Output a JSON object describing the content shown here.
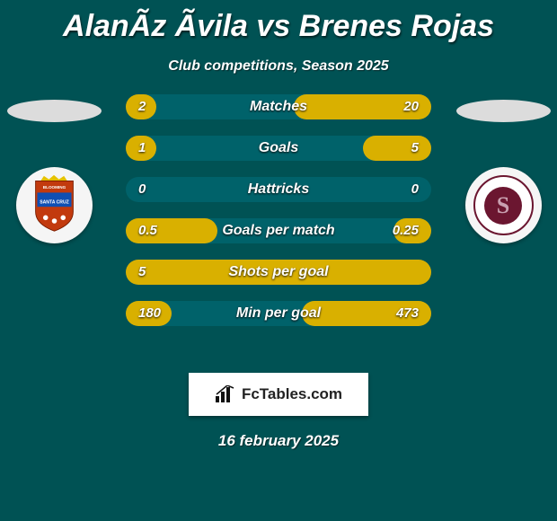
{
  "background_color": "#005254",
  "title": "AlanÃz Ãvila vs Brenes Rojas",
  "subtitle": "Club competitions, Season 2025",
  "date": "16 february 2025",
  "brand": {
    "label": "FcTables.com"
  },
  "bar_fill_color": "#D9B000",
  "bar_bg_color": "#00626A",
  "font_color": "#ffffff",
  "team_left": {
    "name": "Blooming",
    "crest_colors": {
      "shield": "#c23a0e",
      "banner": "#0f4fb3",
      "crown": "#e6c200"
    }
  },
  "team_right": {
    "name": "Saprissa",
    "crest_colors": {
      "ring": "#6b1630",
      "inner_bg": "#6b1630",
      "letter_color": "#c9a0b0",
      "letter": "S"
    }
  },
  "stats": [
    {
      "label": "Matches",
      "left_text": "2",
      "right_text": "20",
      "left_pct": 20,
      "right_pct": 90
    },
    {
      "label": "Goals",
      "left_text": "1",
      "right_text": "5",
      "left_pct": 20,
      "right_pct": 45
    },
    {
      "label": "Hattricks",
      "left_text": "0",
      "right_text": "0",
      "left_pct": 0,
      "right_pct": 0
    },
    {
      "label": "Goals per match",
      "left_text": "0.5",
      "right_text": "0.25",
      "left_pct": 60,
      "right_pct": 25
    },
    {
      "label": "Shots per goal",
      "left_text": "5",
      "right_text": "",
      "left_pct": 100,
      "right_pct": 0
    },
    {
      "label": "Min per goal",
      "left_text": "180",
      "right_text": "473",
      "left_pct": 30,
      "right_pct": 85
    }
  ]
}
